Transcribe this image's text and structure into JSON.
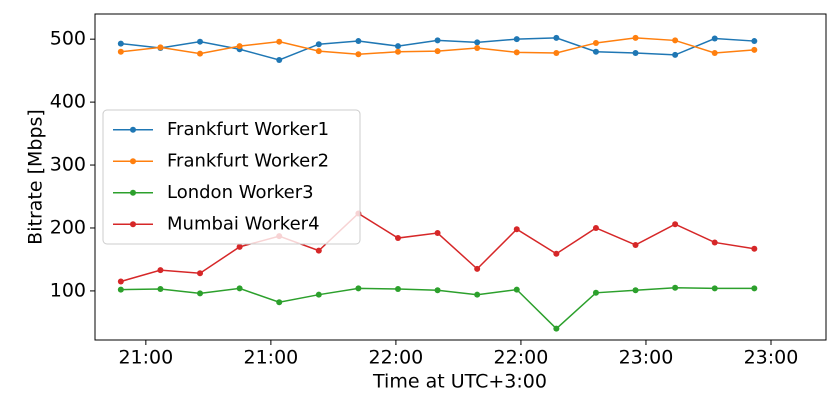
{
  "chart_data": {
    "type": "line",
    "xlabel": "Time at UTC+3:00",
    "ylabel": "Bitrate [Mbps]",
    "x": [
      1254,
      1263.5,
      1273,
      1282.5,
      1292,
      1301.5,
      1311,
      1320.5,
      1330,
      1339.5,
      1349,
      1358.5,
      1368,
      1377.5,
      1387,
      1396.5,
      1406
    ],
    "xlim": [
      1247.8,
      1423.2
    ],
    "xticks": [
      {
        "value": 1260,
        "label": "21:00"
      },
      {
        "value": 1290,
        "label": "21:00"
      },
      {
        "value": 1320,
        "label": "22:00"
      },
      {
        "value": 1350,
        "label": "22:00"
      },
      {
        "value": 1380,
        "label": "23:00"
      },
      {
        "value": 1410,
        "label": "23:00"
      }
    ],
    "ylim": [
      22,
      540
    ],
    "yticks": [
      100,
      200,
      300,
      400,
      500
    ],
    "legend": "center left",
    "series": [
      {
        "name": "Frankfurt Worker1",
        "color": "#1f77b4",
        "values": [
          493,
          486,
          496,
          484,
          467,
          492,
          497,
          489,
          498,
          495,
          500,
          502,
          480,
          478,
          475,
          501,
          497
        ]
      },
      {
        "name": "Frankfurt Worker2",
        "color": "#ff7f0e",
        "values": [
          480,
          487,
          477,
          489,
          496,
          481,
          476,
          480,
          481,
          486,
          479,
          478,
          494,
          502,
          498,
          478,
          483
        ]
      },
      {
        "name": "London Worker3",
        "color": "#2ca02c",
        "values": [
          102,
          103,
          96,
          104,
          82,
          94,
          104,
          103,
          101,
          94,
          102,
          40,
          97,
          101,
          105,
          104,
          104
        ]
      },
      {
        "name": "Mumbai Worker4",
        "color": "#d62728",
        "values": [
          115,
          133,
          128,
          170,
          187,
          164,
          223,
          184,
          192,
          135,
          198,
          159,
          200,
          173,
          206,
          177,
          167
        ]
      }
    ]
  }
}
